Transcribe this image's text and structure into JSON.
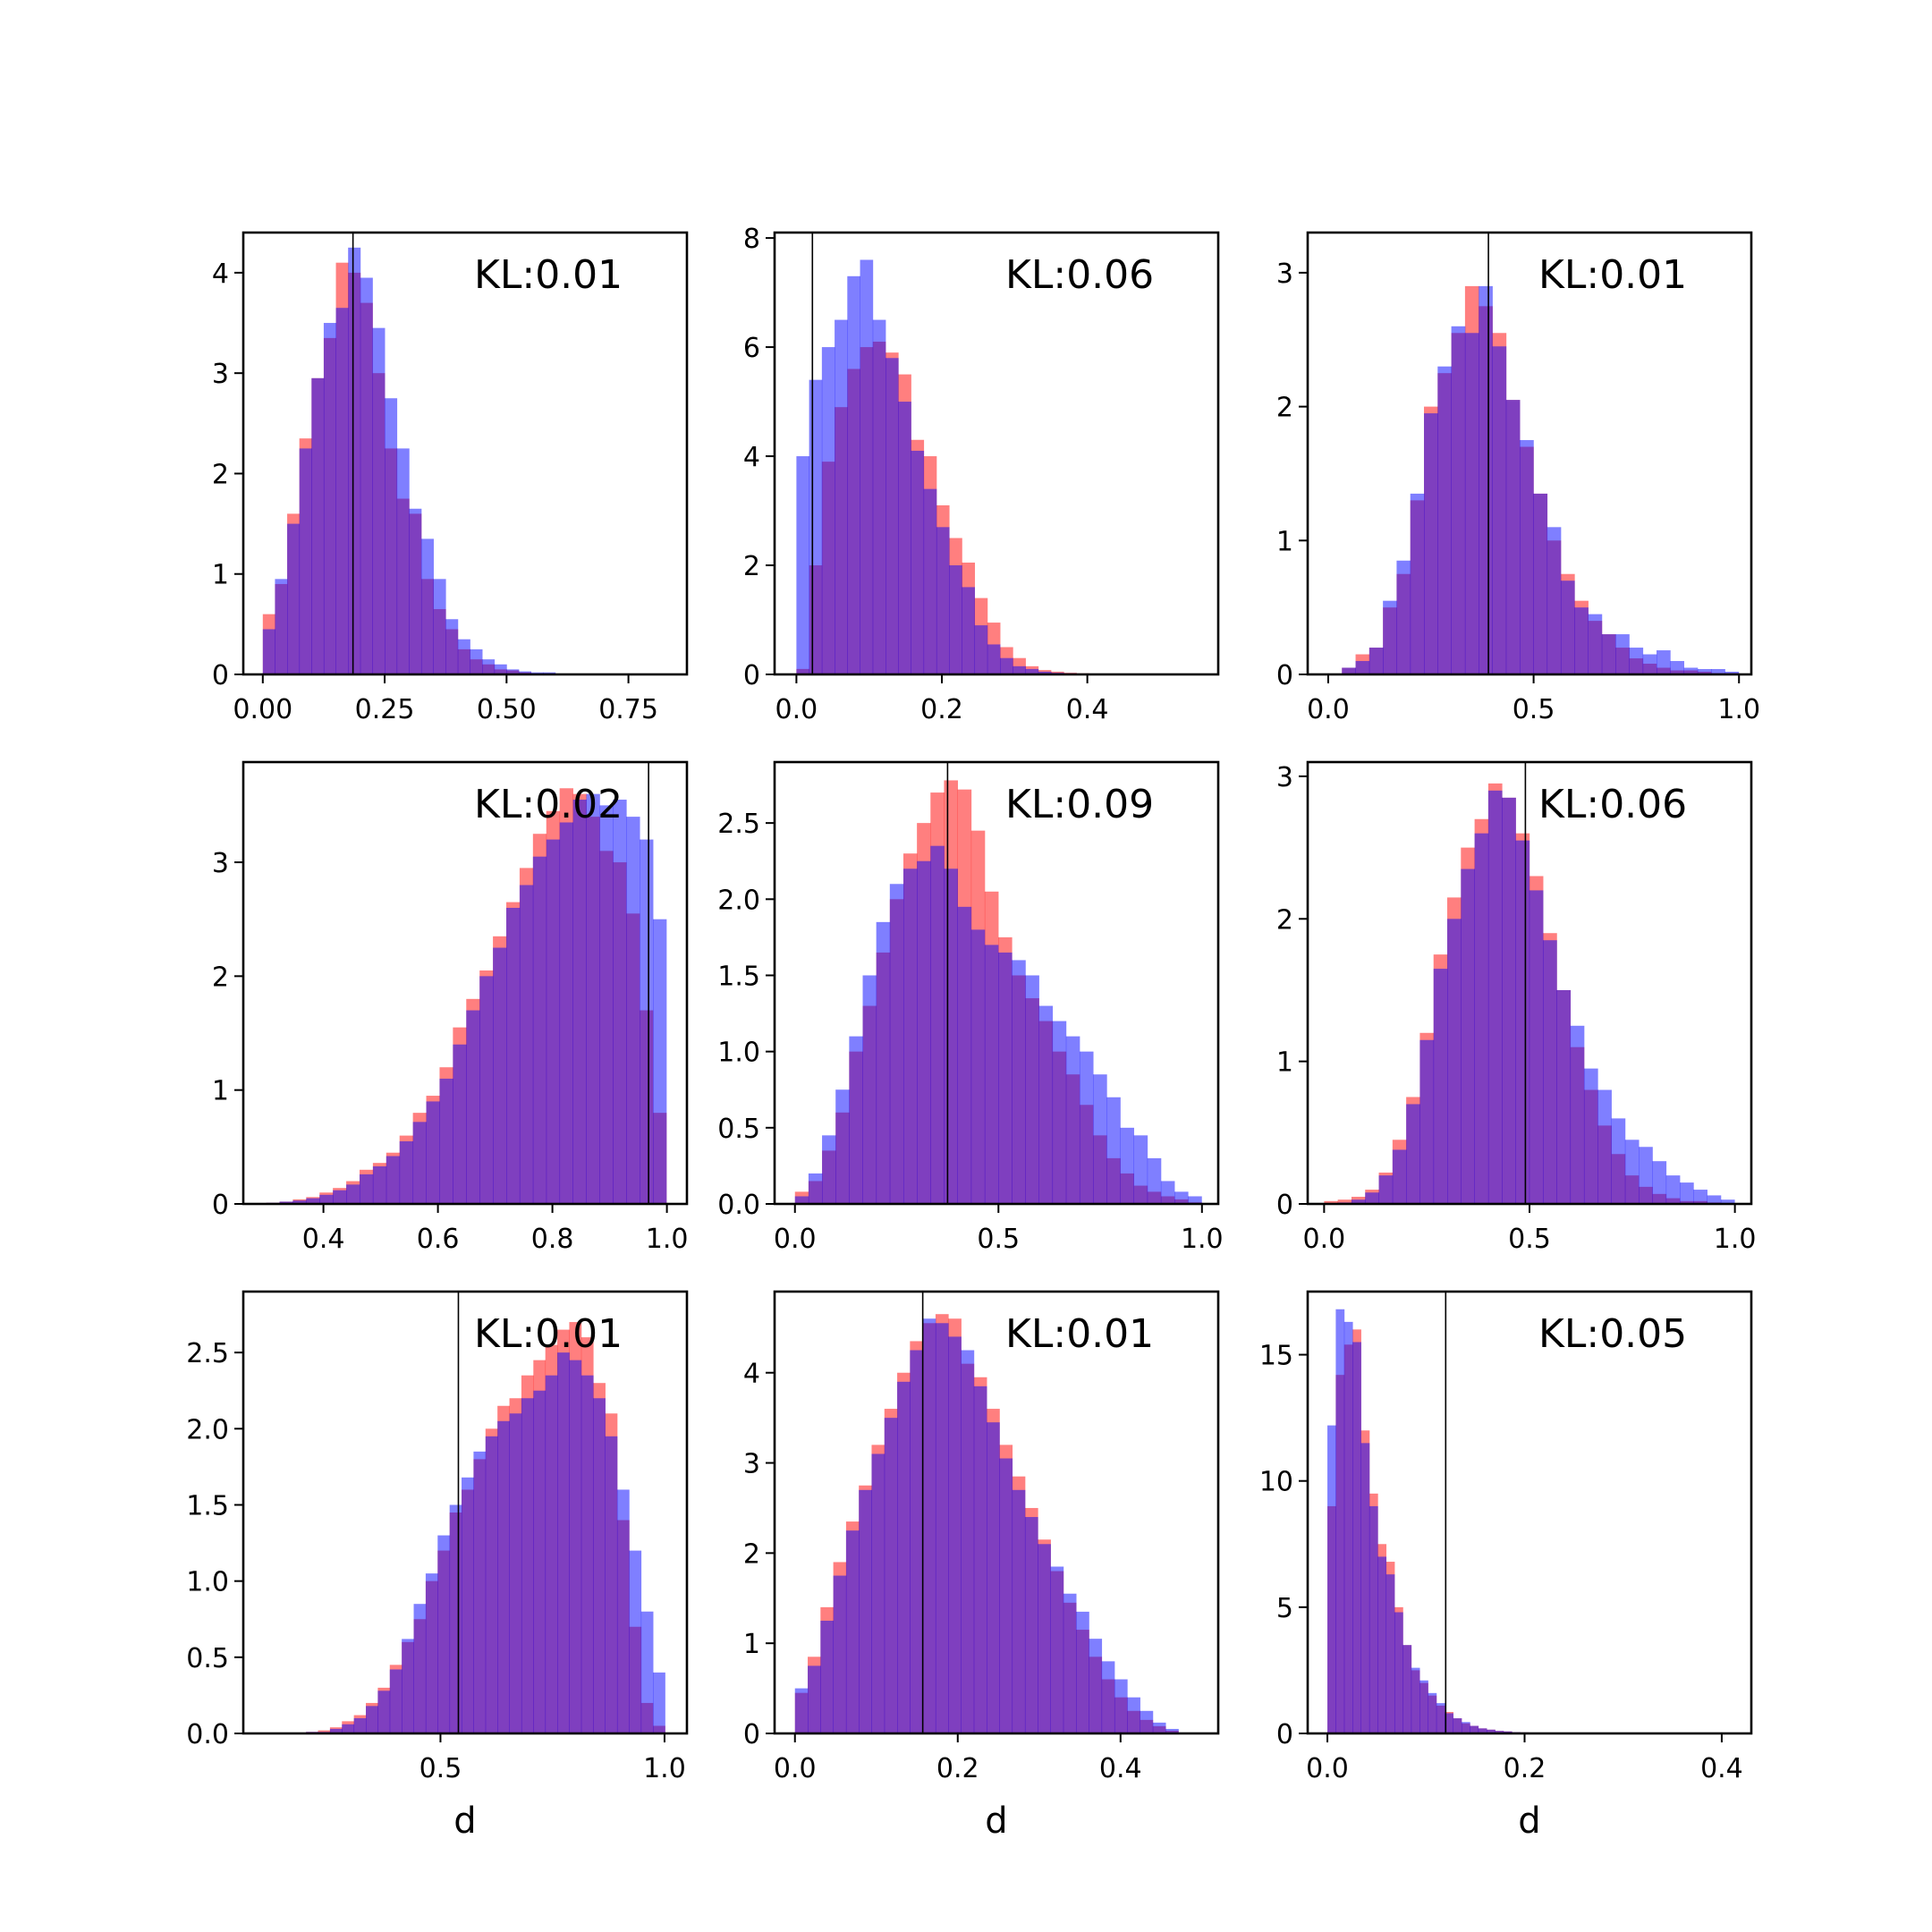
{
  "figure": {
    "colors": {
      "series_a": "#ff0000",
      "series_b": "#0000ff",
      "overlap_note": "semi-transparent overlap",
      "line": "#000000"
    }
  },
  "chart_data": [
    {
      "type": "bar",
      "subtype": "histogram",
      "annotation": "KL:0.01",
      "xlabel": "",
      "xlim": [
        -0.04,
        0.87
      ],
      "ylim": [
        0,
        4.4
      ],
      "xticks": [
        0.0,
        0.25,
        0.5,
        0.75
      ],
      "xtick_labels": [
        "0.00",
        "0.25",
        "0.50",
        "0.75"
      ],
      "yticks": [
        0,
        1,
        2,
        3,
        4
      ],
      "ytick_labels": [
        "0",
        "1",
        "2",
        "3",
        "4"
      ],
      "vline": 0.185,
      "bin_start": 0.0,
      "bin_width": 0.025,
      "series": [
        {
          "values": [
            0.6,
            0.9,
            1.6,
            2.35,
            2.95,
            3.35,
            4.1,
            4.0,
            3.7,
            3.0,
            2.25,
            1.75,
            1.6,
            0.95,
            0.65,
            0.45,
            0.25,
            0.15,
            0.1,
            0.05,
            0.04,
            0.02,
            0.01,
            0.01
          ]
        },
        {
          "values": [
            0.45,
            0.95,
            1.5,
            2.25,
            2.95,
            3.5,
            3.65,
            4.25,
            3.95,
            3.45,
            2.75,
            2.25,
            1.65,
            1.35,
            0.95,
            0.55,
            0.35,
            0.25,
            0.15,
            0.1,
            0.05,
            0.03,
            0.02,
            0.02
          ]
        }
      ]
    },
    {
      "type": "bar",
      "subtype": "histogram",
      "annotation": "KL:0.06",
      "xlabel": "",
      "xlim": [
        -0.03,
        0.58
      ],
      "ylim": [
        0,
        8.1
      ],
      "xticks": [
        0.0,
        0.2,
        0.4
      ],
      "xtick_labels": [
        "0.0",
        "0.2",
        "0.4"
      ],
      "yticks": [
        0,
        2,
        4,
        6,
        8
      ],
      "ytick_labels": [
        "0",
        "2",
        "4",
        "6",
        "8"
      ],
      "vline": 0.022,
      "bin_start": 0.0,
      "bin_width": 0.0175,
      "series": [
        {
          "values": [
            0.1,
            2.0,
            3.9,
            4.9,
            5.6,
            6.0,
            6.1,
            5.9,
            5.5,
            4.3,
            4.0,
            3.1,
            2.5,
            2.05,
            1.4,
            0.95,
            0.5,
            0.3,
            0.15,
            0.08,
            0.05,
            0.03,
            0.02
          ]
        },
        {
          "values": [
            4.0,
            5.4,
            6.0,
            6.5,
            7.3,
            7.6,
            6.5,
            5.8,
            5.0,
            4.1,
            3.4,
            2.7,
            2.0,
            1.6,
            0.9,
            0.55,
            0.3,
            0.15,
            0.1,
            0.05,
            0.03,
            0.02,
            0.01
          ]
        }
      ]
    },
    {
      "type": "bar",
      "subtype": "histogram",
      "annotation": "KL:0.01",
      "xlabel": "",
      "xlim": [
        -0.05,
        1.03
      ],
      "ylim": [
        0,
        3.3
      ],
      "xticks": [
        0.0,
        0.5,
        1.0
      ],
      "xtick_labels": [
        "0.0",
        "0.5",
        "1.0"
      ],
      "yticks": [
        0,
        1,
        2,
        3
      ],
      "ytick_labels": [
        "0",
        "1",
        "2",
        "3"
      ],
      "vline": 0.39,
      "bin_start": 0.0,
      "bin_width": 0.0333,
      "series": [
        {
          "values": [
            0.0,
            0.05,
            0.15,
            0.2,
            0.5,
            0.75,
            1.3,
            2.0,
            2.25,
            2.55,
            2.9,
            2.75,
            2.55,
            2.05,
            1.7,
            1.35,
            1.0,
            0.75,
            0.55,
            0.4,
            0.3,
            0.2,
            0.12,
            0.08,
            0.05,
            0.03,
            0.03,
            0.02,
            0.01,
            0.01
          ]
        },
        {
          "values": [
            0.0,
            0.05,
            0.1,
            0.2,
            0.55,
            0.85,
            1.35,
            1.95,
            2.3,
            2.6,
            2.55,
            2.9,
            2.45,
            2.05,
            1.75,
            1.35,
            1.1,
            0.7,
            0.5,
            0.45,
            0.3,
            0.3,
            0.2,
            0.15,
            0.18,
            0.1,
            0.05,
            0.04,
            0.04,
            0.02
          ]
        }
      ]
    },
    {
      "type": "bar",
      "subtype": "histogram",
      "annotation": "KL:0.02",
      "xlabel": "",
      "xlim": [
        0.26,
        1.035
      ],
      "ylim": [
        0,
        3.88
      ],
      "xticks": [
        0.4,
        0.6,
        0.8,
        1.0
      ],
      "xtick_labels": [
        "0.4",
        "0.6",
        "0.8",
        "1.0"
      ],
      "yticks": [
        0,
        1,
        2,
        3
      ],
      "ytick_labels": [
        "0",
        "1",
        "2",
        "3"
      ],
      "vline": 0.968,
      "bin_start": 0.3,
      "bin_width": 0.0233,
      "series": [
        {
          "values": [
            0.01,
            0.02,
            0.04,
            0.06,
            0.1,
            0.14,
            0.2,
            0.3,
            0.36,
            0.45,
            0.6,
            0.8,
            0.95,
            1.2,
            1.55,
            1.8,
            2.05,
            2.35,
            2.65,
            2.95,
            3.25,
            3.45,
            3.65,
            3.6,
            3.4,
            3.1,
            3.0,
            2.55,
            1.7,
            0.8
          ]
        },
        {
          "values": [
            0.01,
            0.02,
            0.03,
            0.05,
            0.08,
            0.12,
            0.17,
            0.26,
            0.33,
            0.42,
            0.55,
            0.72,
            0.9,
            1.1,
            1.4,
            1.7,
            2.0,
            2.25,
            2.6,
            2.8,
            3.05,
            3.2,
            3.35,
            3.55,
            3.6,
            3.5,
            3.55,
            3.4,
            3.2,
            2.5
          ]
        }
      ]
    },
    {
      "type": "bar",
      "subtype": "histogram",
      "annotation": "KL:0.09",
      "xlabel": "",
      "xlim": [
        -0.05,
        1.04
      ],
      "ylim": [
        0,
        2.9
      ],
      "xticks": [
        0.0,
        0.5,
        1.0
      ],
      "xtick_labels": [
        "0.0",
        "0.5",
        "1.0"
      ],
      "yticks": [
        0,
        0.5,
        1.0,
        1.5,
        2.0,
        2.5
      ],
      "ytick_labels": [
        "0.0",
        "0.5",
        "1.0",
        "1.5",
        "2.0",
        "2.5"
      ],
      "vline": 0.375,
      "bin_start": 0.0,
      "bin_width": 0.0333,
      "series": [
        {
          "values": [
            0.08,
            0.15,
            0.35,
            0.6,
            1.0,
            1.3,
            1.65,
            2.0,
            2.3,
            2.5,
            2.7,
            2.78,
            2.72,
            2.45,
            2.05,
            1.75,
            1.5,
            1.35,
            1.2,
            1.0,
            0.85,
            0.65,
            0.45,
            0.3,
            0.2,
            0.12,
            0.08,
            0.05,
            0.03,
            0.01
          ]
        },
        {
          "values": [
            0.05,
            0.2,
            0.45,
            0.75,
            1.1,
            1.5,
            1.85,
            2.1,
            2.2,
            2.25,
            2.35,
            2.2,
            1.95,
            1.8,
            1.7,
            1.65,
            1.6,
            1.5,
            1.3,
            1.2,
            1.1,
            1.0,
            0.85,
            0.7,
            0.5,
            0.45,
            0.3,
            0.15,
            0.08,
            0.05
          ]
        }
      ]
    },
    {
      "type": "bar",
      "subtype": "histogram",
      "annotation": "KL:0.06",
      "xlabel": "",
      "xlim": [
        -0.04,
        1.04
      ],
      "ylim": [
        0,
        3.1
      ],
      "xticks": [
        0.0,
        0.5,
        1.0
      ],
      "xtick_labels": [
        "0.0",
        "0.5",
        "1.0"
      ],
      "yticks": [
        0,
        1,
        2,
        3
      ],
      "ytick_labels": [
        "0",
        "1",
        "2",
        "3"
      ],
      "vline": 0.49,
      "bin_start": 0.0,
      "bin_width": 0.0333,
      "series": [
        {
          "values": [
            0.02,
            0.03,
            0.05,
            0.1,
            0.22,
            0.45,
            0.75,
            1.2,
            1.75,
            2.15,
            2.5,
            2.7,
            2.95,
            2.85,
            2.6,
            2.3,
            1.9,
            1.5,
            1.1,
            0.8,
            0.55,
            0.35,
            0.2,
            0.12,
            0.07,
            0.04,
            0.02,
            0.02,
            0.01,
            0.0
          ]
        },
        {
          "values": [
            0.0,
            0.01,
            0.03,
            0.08,
            0.2,
            0.38,
            0.7,
            1.15,
            1.65,
            2.0,
            2.35,
            2.6,
            2.9,
            2.85,
            2.55,
            2.2,
            1.85,
            1.5,
            1.25,
            0.95,
            0.8,
            0.6,
            0.45,
            0.4,
            0.3,
            0.2,
            0.15,
            0.1,
            0.06,
            0.03
          ]
        }
      ]
    },
    {
      "type": "bar",
      "subtype": "histogram",
      "annotation": "KL:0.01",
      "xlabel": "d",
      "xlim": [
        0.06,
        1.05
      ],
      "ylim": [
        0,
        2.9
      ],
      "xticks": [
        0.5,
        1.0
      ],
      "xtick_labels": [
        "0.5",
        "1.0"
      ],
      "yticks": [
        0,
        0.5,
        1.0,
        1.5,
        2.0,
        2.5
      ],
      "ytick_labels": [
        "0.0",
        "0.5",
        "1.0",
        "1.5",
        "2.0",
        "2.5"
      ],
      "vline": 0.54,
      "bin_start": 0.2,
      "bin_width": 0.0267,
      "series": [
        {
          "values": [
            0.01,
            0.02,
            0.04,
            0.08,
            0.12,
            0.2,
            0.3,
            0.45,
            0.6,
            0.75,
            1.0,
            1.2,
            1.45,
            1.6,
            1.8,
            2.0,
            2.15,
            2.2,
            2.35,
            2.45,
            2.55,
            2.65,
            2.7,
            2.6,
            2.3,
            2.1,
            1.4,
            0.7,
            0.2,
            0.05
          ]
        },
        {
          "values": [
            0.01,
            0.01,
            0.03,
            0.06,
            0.1,
            0.18,
            0.28,
            0.42,
            0.62,
            0.85,
            1.05,
            1.3,
            1.5,
            1.68,
            1.85,
            1.95,
            2.05,
            2.1,
            2.2,
            2.25,
            2.35,
            2.5,
            2.45,
            2.35,
            2.2,
            1.95,
            1.6,
            1.2,
            0.8,
            0.4
          ]
        }
      ]
    },
    {
      "type": "bar",
      "subtype": "histogram",
      "annotation": "KL:0.01",
      "xlabel": "d",
      "xlim": [
        -0.025,
        0.52
      ],
      "ylim": [
        0,
        4.9
      ],
      "xticks": [
        0.0,
        0.2,
        0.4
      ],
      "xtick_labels": [
        "0.0",
        "0.2",
        "0.4"
      ],
      "yticks": [
        0,
        1,
        2,
        3,
        4
      ],
      "ytick_labels": [
        "0",
        "1",
        "2",
        "3",
        "4"
      ],
      "vline": 0.157,
      "bin_start": 0.0,
      "bin_width": 0.0157,
      "series": [
        {
          "values": [
            0.45,
            0.85,
            1.4,
            1.9,
            2.35,
            2.75,
            3.2,
            3.6,
            4.0,
            4.35,
            4.55,
            4.65,
            4.6,
            4.1,
            3.95,
            3.6,
            3.2,
            2.85,
            2.5,
            2.15,
            1.8,
            1.45,
            1.15,
            0.85,
            0.6,
            0.4,
            0.25,
            0.15,
            0.08,
            0.03
          ]
        },
        {
          "values": [
            0.5,
            0.75,
            1.25,
            1.75,
            2.25,
            2.7,
            3.1,
            3.5,
            3.9,
            4.25,
            4.6,
            4.55,
            4.4,
            4.25,
            3.85,
            3.45,
            3.05,
            2.7,
            2.4,
            2.1,
            1.85,
            1.55,
            1.35,
            1.05,
            0.8,
            0.6,
            0.4,
            0.25,
            0.12,
            0.05
          ]
        }
      ]
    },
    {
      "type": "bar",
      "subtype": "histogram",
      "annotation": "KL:0.05",
      "xlabel": "d",
      "xlim": [
        -0.02,
        0.43
      ],
      "ylim": [
        0,
        17.5
      ],
      "xticks": [
        0.0,
        0.2,
        0.4
      ],
      "xtick_labels": [
        "0.0",
        "0.2",
        "0.4"
      ],
      "yticks": [
        0,
        5,
        10,
        15
      ],
      "ytick_labels": [
        "0",
        "5",
        "10",
        "15"
      ],
      "vline": 0.12,
      "bin_start": 0.0,
      "bin_width": 0.0085,
      "series": [
        {
          "values": [
            9.0,
            14.2,
            15.4,
            16.0,
            12.0,
            9.5,
            7.5,
            6.8,
            5.0,
            3.5,
            2.5,
            2.0,
            1.5,
            1.1,
            0.85,
            0.6,
            0.4,
            0.3,
            0.2,
            0.15,
            0.1,
            0.08,
            0.05,
            0.04,
            0.03,
            0.02,
            0.02,
            0.01,
            0.01,
            0.01
          ]
        },
        {
          "values": [
            12.2,
            16.8,
            16.3,
            15.5,
            11.5,
            9.0,
            7.0,
            6.3,
            4.8,
            3.5,
            2.6,
            2.1,
            1.6,
            1.2,
            0.8,
            0.6,
            0.45,
            0.3,
            0.2,
            0.15,
            0.1,
            0.08,
            0.05,
            0.04,
            0.03,
            0.02,
            0.02,
            0.01,
            0.01,
            0.01
          ]
        }
      ]
    }
  ]
}
